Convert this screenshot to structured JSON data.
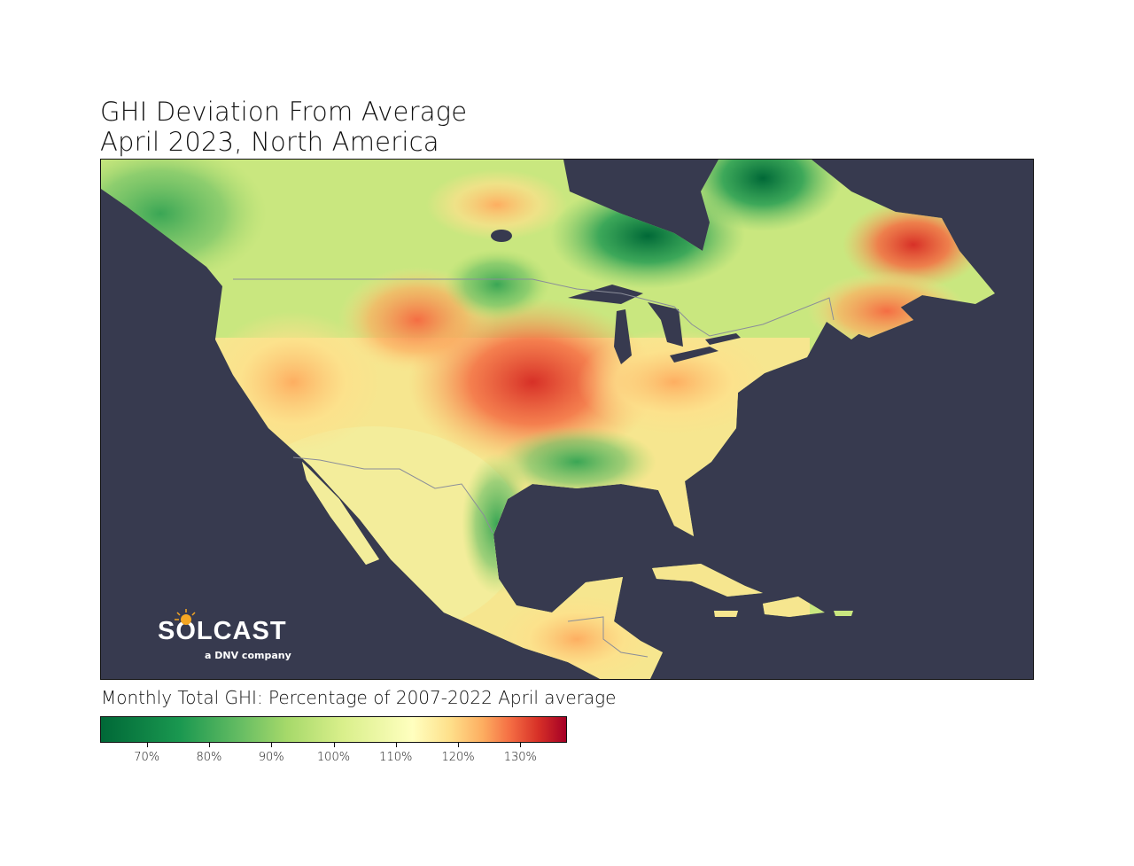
{
  "title": {
    "line1": "GHI Deviation From Average",
    "line2": "April 2023, North America"
  },
  "map": {
    "background_color": "#373a4f",
    "colormap": "RdYlGn_r",
    "region": "North America",
    "hotspots": [
      "central US (red, ~125-130%)",
      "Nova Scotia / eastern Quebec (orange-red)",
      "Hudson Bay region (dark green, ~70%)"
    ]
  },
  "colorbar": {
    "label": "Monthly Total GHI: Percentage of 2007-2022 April average",
    "range": [
      62.5,
      137.5
    ],
    "ticks": [
      {
        "value": 70,
        "label": "70%"
      },
      {
        "value": 80,
        "label": "80%"
      },
      {
        "value": 90,
        "label": "90%"
      },
      {
        "value": 100,
        "label": "100%"
      },
      {
        "value": 110,
        "label": "110%"
      },
      {
        "value": 120,
        "label": "120%"
      },
      {
        "value": 130,
        "label": "130%"
      }
    ]
  },
  "logo": {
    "brand": "SOLCAST",
    "tagline": "a DNV company"
  }
}
